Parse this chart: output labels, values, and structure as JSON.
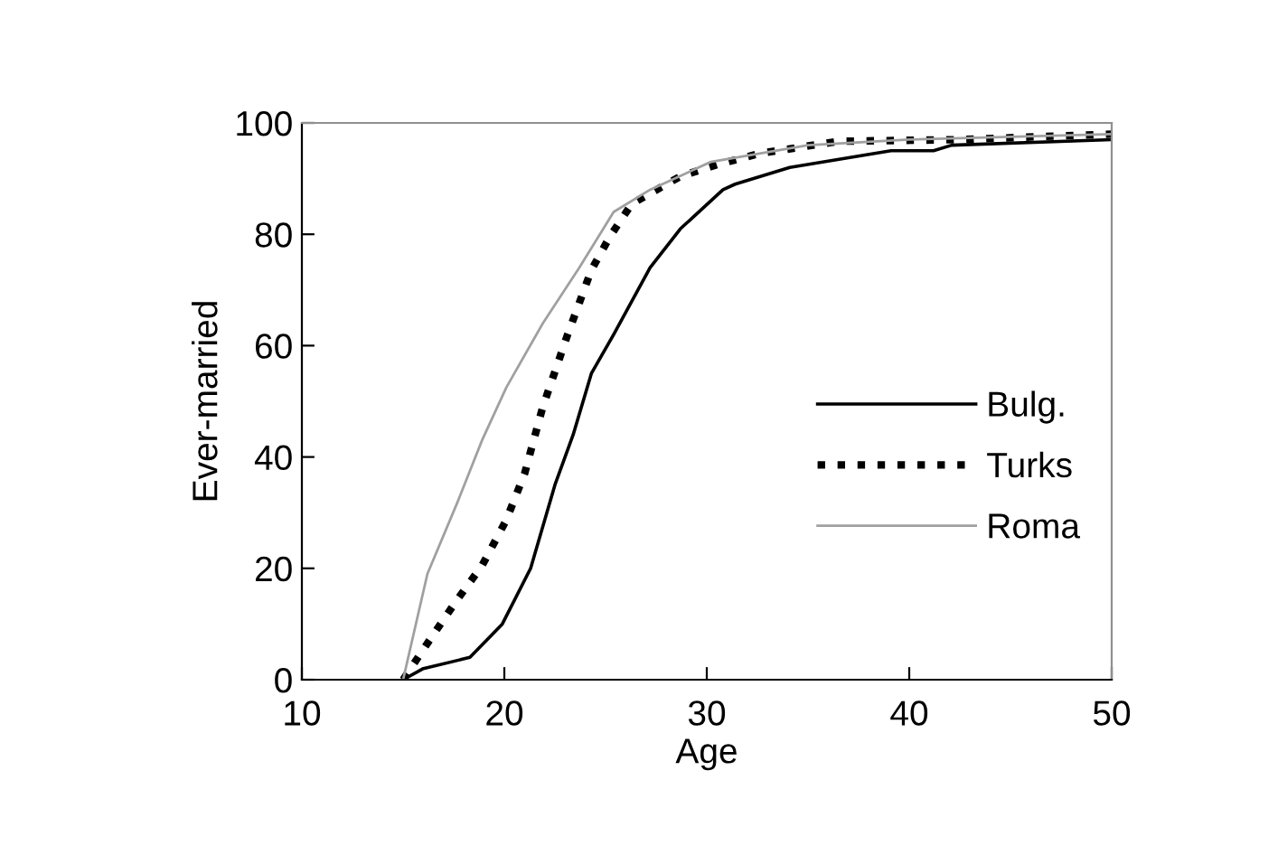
{
  "chart_data": {
    "type": "line",
    "xlabel": "Age",
    "ylabel": "Ever-married",
    "xlim": [
      10,
      50
    ],
    "xticks": [
      10,
      20,
      30,
      40,
      50
    ],
    "ylim": [
      0,
      100
    ],
    "yticks": [
      0,
      20,
      40,
      60,
      80,
      100
    ],
    "grid": false,
    "legend": "right",
    "marker": "none",
    "series": [
      {
        "name": "Bulg.",
        "color": "#000000",
        "line_style": "solid",
        "x": [
          15,
          16,
          18.3,
          19.9,
          21.3,
          22.5,
          23.4,
          24.3,
          25.4,
          27.2,
          28.7,
          30.8,
          31.4,
          34.1,
          39.1,
          41.2,
          42.1,
          50
        ],
        "values": [
          0,
          2,
          4,
          10,
          20,
          35,
          44,
          55,
          62,
          74,
          81,
          88,
          89,
          92,
          95,
          95,
          96,
          97
        ]
      },
      {
        "name": "Turks",
        "color": "#000000",
        "line_style": "dotted",
        "x": [
          15,
          16.4,
          17.6,
          18.9,
          20.1,
          21,
          21.9,
          23.1,
          24.3,
          25.2,
          26.3,
          28.7,
          30.5,
          32.6,
          36.5,
          42.4,
          50
        ],
        "values": [
          0,
          7.6,
          14,
          20.5,
          28.7,
          37,
          49,
          61.7,
          73.6,
          79.5,
          85.5,
          90.4,
          92.5,
          94.5,
          96.7,
          97,
          98
        ]
      },
      {
        "name": "Roma",
        "color": "#a0a0a0",
        "line_style": "solid",
        "x": [
          15,
          16.2,
          17.7,
          18.9,
          20.1,
          21.9,
          23.7,
          25.4,
          27.2,
          30.2,
          35,
          40,
          50
        ],
        "values": [
          0,
          19,
          32,
          43,
          52.5,
          64,
          74,
          84,
          88,
          93,
          96,
          97,
          98
        ]
      }
    ]
  }
}
